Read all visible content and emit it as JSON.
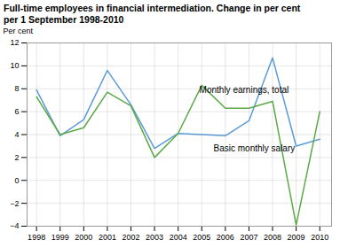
{
  "chart_data": {
    "type": "line",
    "title": "Full-time employees in financial intermediation. Change in per cent",
    "subtitle": "per 1 September 1998-2010",
    "ylabel": "Per cent",
    "x": [
      1998,
      1999,
      2000,
      2001,
      2002,
      2003,
      2004,
      2005,
      2006,
      2007,
      2008,
      2009,
      2010
    ],
    "series": [
      {
        "name": "Basic monthly salary",
        "color": "#5b9bd5",
        "values": [
          7.9,
          3.9,
          5.3,
          9.6,
          6.6,
          2.8,
          4.1,
          4.0,
          3.9,
          5.2,
          10.7,
          3.0,
          3.6
        ]
      },
      {
        "name": "Monthly earnings, total",
        "color": "#5aaa46",
        "values": [
          7.3,
          4.0,
          4.6,
          7.7,
          6.5,
          2.0,
          4.1,
          8.3,
          6.3,
          6.3,
          6.9,
          -3.9,
          6.0
        ]
      }
    ],
    "annotations": [
      {
        "text": "Monthly earnings, total",
        "x": 2004.9,
        "y": 7.6
      },
      {
        "text": "Basic monthly salary",
        "x": 2005.5,
        "y": 2.55
      }
    ],
    "xlim": [
      1997.6,
      2010.5
    ],
    "xticks": [
      1998,
      1999,
      2000,
      2001,
      2002,
      2003,
      2004,
      2005,
      2006,
      2007,
      2008,
      2009,
      2010
    ],
    "ylim": [
      -4,
      12
    ],
    "yticks": [
      -4,
      -2,
      0,
      2,
      4,
      6,
      8,
      10,
      12
    ],
    "grid": true
  }
}
